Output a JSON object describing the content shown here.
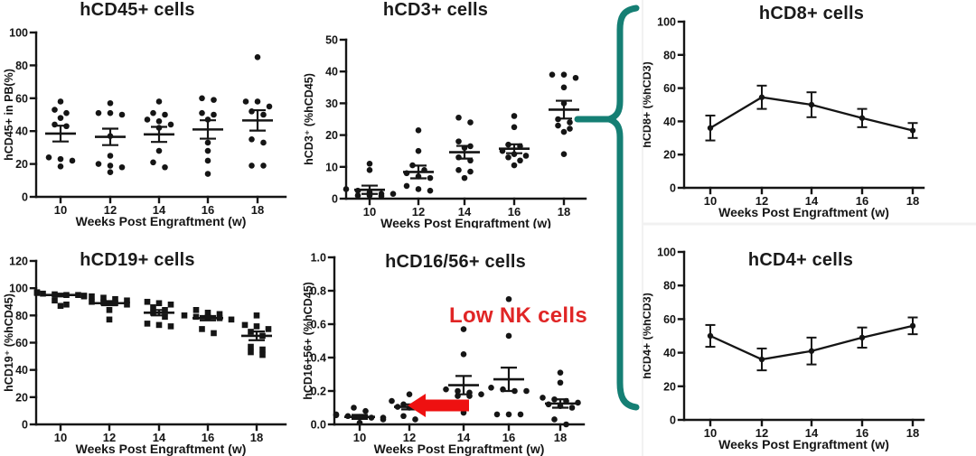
{
  "figure": {
    "description": "Human immune cell engraftment kinetics panels",
    "x_axis_weeks": [
      "10",
      "12",
      "14",
      "16",
      "18"
    ]
  },
  "annotations": {
    "low_nk": {
      "text": "Low NK cells",
      "color": "#e02525"
    },
    "arrow": {
      "color": "#ee1111"
    },
    "brace": {
      "color": "#157f74"
    }
  },
  "chart_data": [
    {
      "id": "hcd45",
      "type": "scatter",
      "marker": "circle",
      "title": "hCD45+ cells",
      "xlabel": "Weeks  Post Engraftment (w)",
      "ylabel": "hCD45+ in PB(%)",
      "ylim": [
        0,
        100
      ],
      "yticks": [
        0,
        20,
        40,
        60,
        80,
        100
      ],
      "ytick_labels": [
        "0",
        "20",
        "40",
        "60",
        "80",
        "100"
      ],
      "categories": [
        "10",
        "12",
        "14",
        "16",
        "18"
      ],
      "groups": [
        {
          "points": [
            58,
            53,
            51,
            48,
            44,
            43,
            24,
            23,
            22,
            18.5
          ],
          "mean": 38.5,
          "sem": 4.8
        },
        {
          "points": [
            57,
            51,
            51,
            50,
            37,
            25,
            20,
            19,
            18,
            15
          ],
          "mean": 36.5,
          "sem": 5
        },
        {
          "points": [
            58,
            51,
            50,
            47,
            46,
            44,
            42,
            28,
            21,
            18
          ],
          "mean": 38,
          "sem": 4.6
        },
        {
          "points": [
            60,
            59,
            51,
            50,
            47,
            33,
            28,
            22,
            14
          ],
          "mean": 41,
          "sem": 5.6
        },
        {
          "points": [
            85,
            58,
            58,
            55,
            52,
            50,
            35,
            33,
            19,
            19
          ],
          "mean": 46.5,
          "sem": 6.2
        }
      ]
    },
    {
      "id": "hcd3",
      "type": "scatter",
      "marker": "circle",
      "title": "hCD3+ cells",
      "xlabel": "Weeks Post Engraftment (w)",
      "ylabel": "hCD3⁺ (%hCD45)",
      "ylim": [
        0,
        50
      ],
      "yticks": [
        0,
        10,
        20,
        30,
        40,
        50
      ],
      "ytick_labels": [
        "0",
        "10",
        "20",
        "30",
        "40",
        "50"
      ],
      "categories": [
        "10",
        "12",
        "14",
        "16",
        "18"
      ],
      "groups": [
        {
          "points": [
            11,
            9,
            3,
            2.5,
            2,
            1.5,
            1.5,
            1,
            1,
            0.8
          ],
          "mean": 2.8,
          "sem": 1.3
        },
        {
          "points": [
            21.5,
            15,
            10.5,
            9,
            8,
            7,
            6.5,
            4,
            3,
            2.5
          ],
          "mean": 8.4,
          "sem": 2
        },
        {
          "points": [
            25.5,
            24,
            18,
            16.5,
            16,
            13,
            12,
            9,
            8.5,
            6.5
          ],
          "mean": 14.6,
          "sem": 2
        },
        {
          "points": [
            26,
            22.5,
            17,
            16.5,
            15,
            14,
            13.5,
            13,
            12,
            10.5
          ],
          "mean": 15.7,
          "sem": 1.4
        },
        {
          "points": [
            39,
            39,
            38,
            35,
            30,
            25,
            24,
            23,
            22,
            21,
            14
          ],
          "mean": 28,
          "sem": 2.8
        }
      ]
    },
    {
      "id": "hcd8",
      "type": "line",
      "title": "hCD8+ cells",
      "xlabel": "Weeks Post Engraftment (w)",
      "ylabel": "hCD8+ (%hCD3)",
      "ylim": [
        0,
        100
      ],
      "yticks": [
        0,
        20,
        40,
        60,
        80,
        100
      ],
      "ytick_labels": [
        "0",
        "20",
        "40",
        "60",
        "80",
        "100"
      ],
      "categories": [
        "10",
        "12",
        "14",
        "16",
        "18"
      ],
      "means": [
        36,
        54.5,
        50,
        42,
        34.5
      ],
      "sems": [
        7.5,
        7,
        7.5,
        5.5,
        4.5
      ]
    },
    {
      "id": "hcd19",
      "type": "scatter",
      "marker": "square",
      "title": "hCD19+ cells",
      "xlabel": "Weeks Post Engraftment (w)",
      "ylabel": "hCD19⁺ (%hCD45)",
      "ylim": [
        0,
        120
      ],
      "yticks": [
        0,
        20,
        40,
        60,
        80,
        100,
        120
      ],
      "ytick_labels": [
        "0",
        "20",
        "40",
        "60",
        "80",
        "100",
        "120"
      ],
      "categories": [
        "10",
        "12",
        "14",
        "16",
        "18"
      ],
      "groups": [
        {
          "points": [
            97,
            96.5,
            96,
            95.5,
            95,
            95,
            94.5,
            94,
            91,
            88,
            87
          ],
          "mean": 95,
          "sem": 1
        },
        {
          "points": [
            94,
            93,
            92,
            91,
            90,
            89.5,
            89,
            88,
            84,
            77
          ],
          "mean": 89,
          "sem": 1.5
        },
        {
          "points": [
            90,
            89,
            88,
            86,
            84,
            82,
            79,
            74,
            73,
            72
          ],
          "mean": 82,
          "sem": 2
        },
        {
          "points": [
            84,
            82,
            81,
            80,
            79,
            78.5,
            78,
            77,
            70,
            67
          ],
          "mean": 78,
          "sem": 1.6
        },
        {
          "points": [
            80,
            73,
            72,
            70,
            68,
            65,
            57,
            55,
            53,
            51
          ],
          "mean": 65,
          "sem": 3.2
        }
      ]
    },
    {
      "id": "hcd16_56",
      "type": "scatter",
      "marker": "circle",
      "title": "hCD16/56+ cells",
      "xlabel": "Weeks Post Engraftment (w)",
      "ylabel": "hCD16+56+ (%hCD45)",
      "ylim": [
        0,
        1
      ],
      "yticks": [
        0,
        0.2,
        0.4,
        0.6,
        0.8,
        1
      ],
      "ytick_labels": [
        "0.0",
        "0.2",
        "0.4",
        "0.6",
        "0.8",
        "1.0"
      ],
      "categories": [
        "10",
        "12",
        "14",
        "16",
        "18"
      ],
      "groups": [
        {
          "points": [
            0.1,
            0.08,
            0.06,
            0.055,
            0.05,
            0.045,
            0.04,
            0.04,
            0.03,
            0.01
          ],
          "mean": 0.045,
          "sem": 0.012
        },
        {
          "points": [
            0.18,
            0.14,
            0.12,
            0.115,
            0.11,
            0.105,
            0.1,
            0.09,
            0.05,
            0.03
          ],
          "mean": 0.105,
          "sem": 0.015
        },
        {
          "points": [
            0.57,
            0.42,
            0.21,
            0.2,
            0.19,
            0.18,
            0.17,
            0.17,
            0.07
          ],
          "mean": 0.235,
          "sem": 0.055
        },
        {
          "points": [
            0.75,
            0.53,
            0.22,
            0.21,
            0.2,
            0.2,
            0.06,
            0.06,
            0.06
          ],
          "mean": 0.27,
          "sem": 0.07
        },
        {
          "points": [
            0.31,
            0.25,
            0.16,
            0.15,
            0.14,
            0.13,
            0.12,
            0.11,
            0.1,
            0.03,
            0.0
          ],
          "mean": 0.125,
          "sem": 0.025
        }
      ]
    },
    {
      "id": "hcd4",
      "type": "line",
      "title": "hCD4+ cells",
      "xlabel": "Weeks Post Engraftment (w)",
      "ylabel": "hCD4+ (%hCD3)",
      "ylim": [
        0,
        100
      ],
      "yticks": [
        0,
        20,
        40,
        60,
        80,
        100
      ],
      "ytick_labels": [
        "0",
        "20",
        "40",
        "60",
        "80",
        "100"
      ],
      "categories": [
        "10",
        "12",
        "14",
        "16",
        "18"
      ],
      "means": [
        50,
        36,
        41,
        49,
        56
      ],
      "sems": [
        6.5,
        6.5,
        8,
        6,
        5
      ]
    }
  ]
}
